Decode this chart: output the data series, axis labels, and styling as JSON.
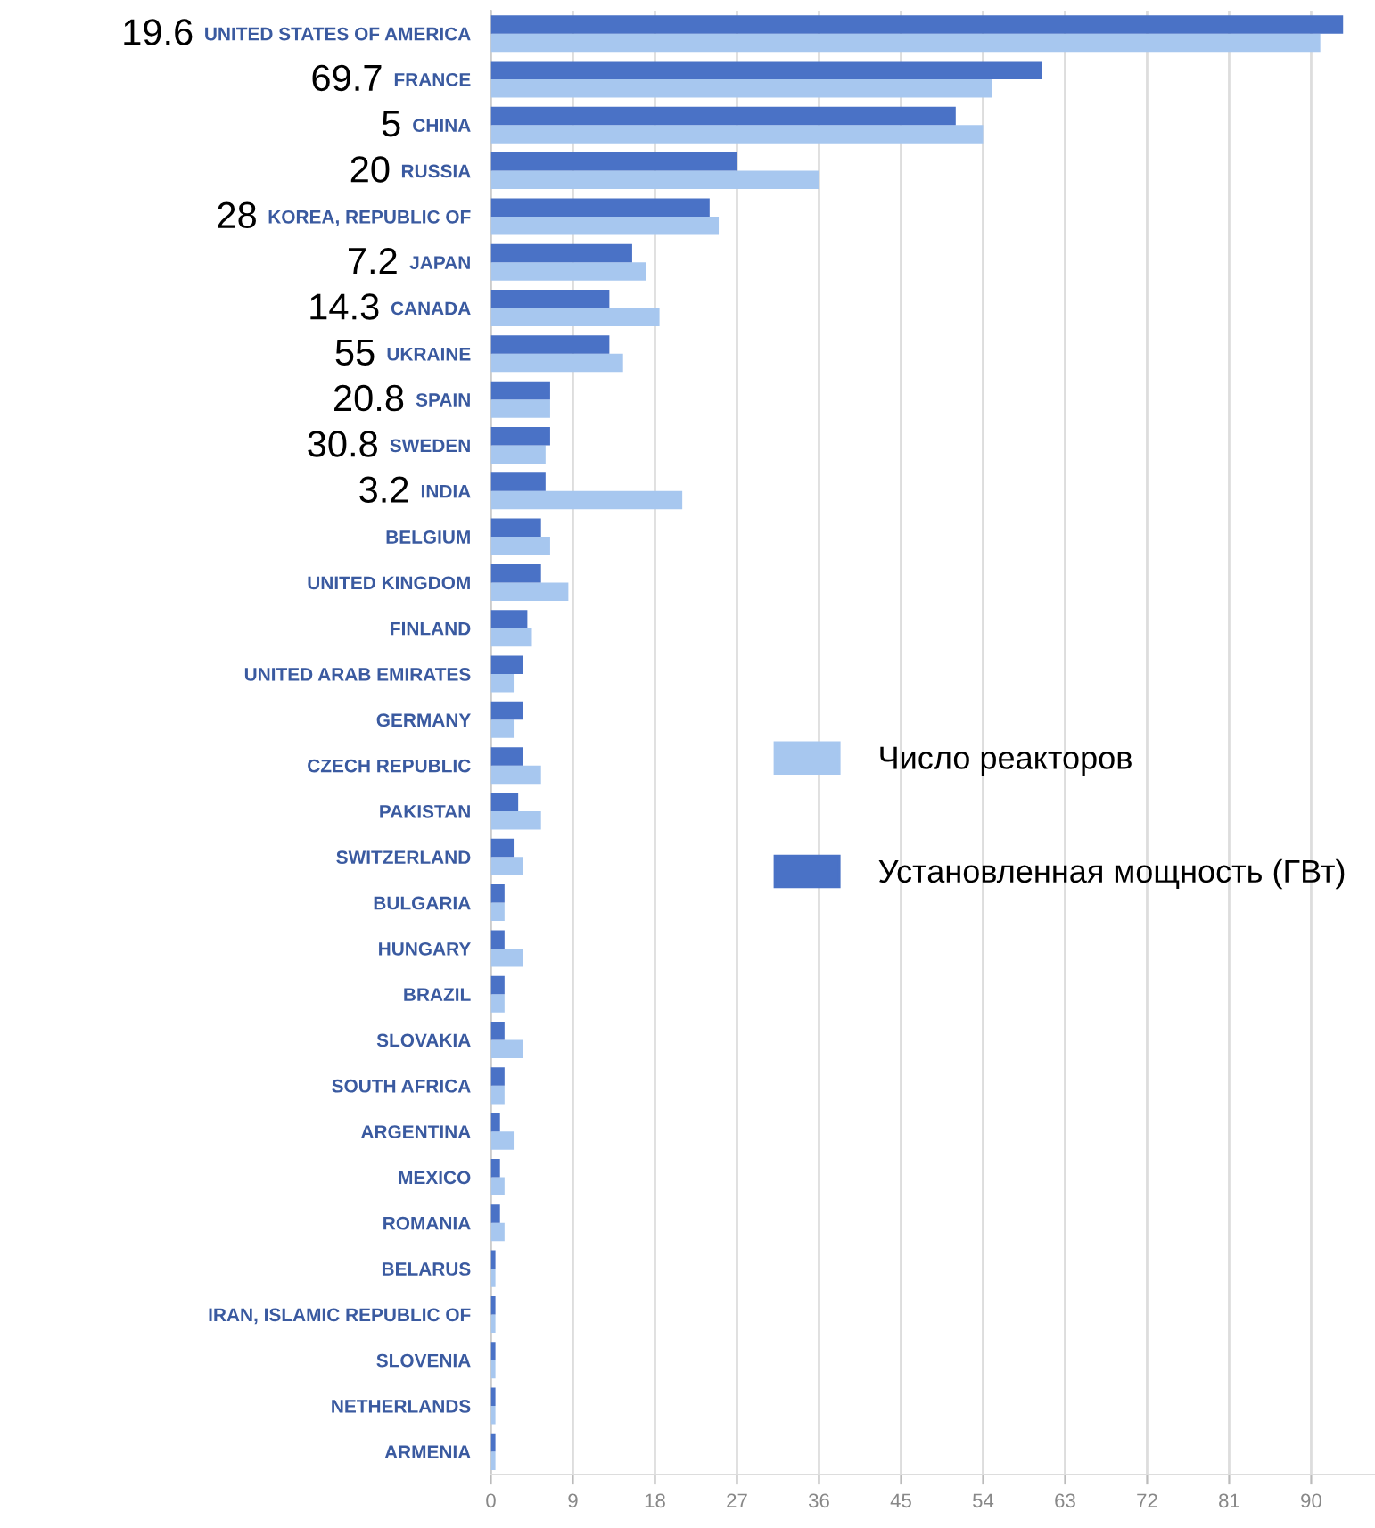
{
  "chart_data": {
    "type": "bar",
    "orientation": "horizontal",
    "categories": [
      "UNITED STATES OF AMERICA",
      "FRANCE",
      "CHINA",
      "RUSSIA",
      "KOREA, REPUBLIC OF",
      "JAPAN",
      "CANADA",
      "UKRAINE",
      "SPAIN",
      "SWEDEN",
      "INDIA",
      "BELGIUM",
      "UNITED KINGDOM",
      "FINLAND",
      "UNITED ARAB EMIRATES",
      "GERMANY",
      "CZECH REPUBLIC",
      "PAKISTAN",
      "SWITZERLAND",
      "BULGARIA",
      "HUNGARY",
      "BRAZIL",
      "SLOVAKIA",
      "SOUTH AFRICA",
      "ARGENTINA",
      "MEXICO",
      "ROMANIA",
      "BELARUS",
      "IRAN, ISLAMIC REPUBLIC OF",
      "SLOVENIA",
      "NETHERLANDS",
      "ARMENIA"
    ],
    "series": [
      {
        "name": "Число реакторов",
        "color": "#a7c7ef",
        "values": [
          91,
          55,
          54,
          36,
          25,
          17,
          18.5,
          14.5,
          6.5,
          6,
          21,
          6.5,
          8.5,
          4.5,
          2.5,
          2.5,
          5.5,
          5.5,
          3.5,
          1.5,
          3.5,
          1.5,
          3.5,
          1.5,
          2.5,
          1.5,
          1.5,
          0.5,
          0.5,
          0.5,
          0.5,
          0.5
        ]
      },
      {
        "name": "Установленная мощность (ГВт)",
        "color": "#4a72c6",
        "values": [
          93.5,
          60.5,
          51,
          27,
          24,
          15.5,
          13,
          13,
          6.5,
          6.5,
          6,
          5.5,
          5.5,
          4,
          3.5,
          3.5,
          3.5,
          3,
          2.5,
          1.5,
          1.5,
          1.5,
          1.5,
          1.5,
          1,
          1,
          1,
          0.5,
          0.5,
          0.5,
          0.5,
          0.5
        ]
      }
    ],
    "xlim": [
      0,
      97
    ],
    "xticks": [
      0,
      9,
      18,
      27,
      36,
      45,
      54,
      63,
      72,
      81,
      90
    ],
    "grid": "x",
    "legend": "right",
    "annotations": [
      "19.6",
      "69.7",
      "5",
      "20",
      "28",
      "7.2",
      "14.3",
      "55",
      "20.8",
      "30.8",
      "3.2"
    ]
  }
}
